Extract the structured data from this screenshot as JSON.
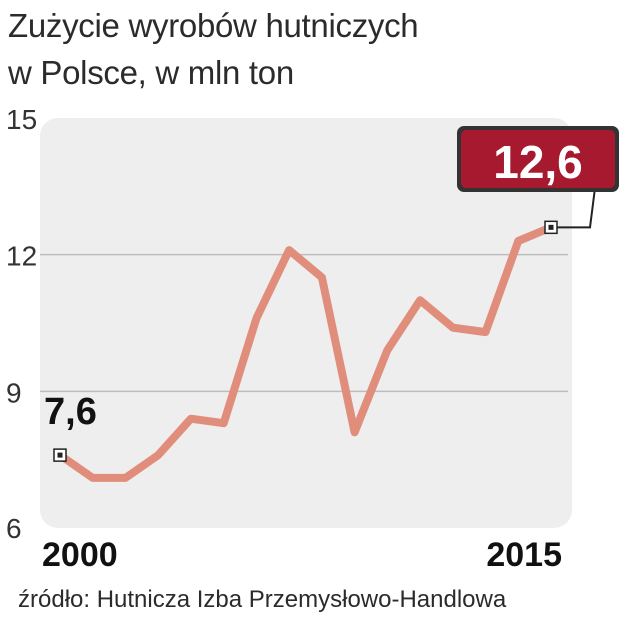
{
  "title_lines": [
    "Zużycie wyrobów hutniczych",
    "w Polsce, w mln ton"
  ],
  "source": "źródło: Hutnicza Izba Przemysłowo-Handlowa",
  "colors": {
    "line": "#e08e7b",
    "panel": "#eeeeee",
    "grid": "#bdbdbd",
    "highlight": "#a6192e"
  },
  "chart_data": {
    "type": "line",
    "title": "Zużycie wyrobów hutniczych w Polsce, w mln ton",
    "x": [
      2000,
      2001,
      2002,
      2003,
      2004,
      2005,
      2006,
      2007,
      2008,
      2009,
      2010,
      2011,
      2012,
      2013,
      2014,
      2015
    ],
    "series": [
      {
        "values": [
          7.6,
          7.1,
          7.1,
          7.6,
          8.4,
          8.3,
          10.6,
          12.1,
          11.5,
          8.1,
          9.9,
          11.0,
          10.4,
          10.3,
          12.3,
          12.6
        ]
      }
    ],
    "yticks": [
      6,
      9,
      12,
      15
    ],
    "ytick_labels": [
      "6",
      "9",
      "12",
      "15"
    ],
    "ylim": [
      6,
      15
    ],
    "xtick_labels": [
      {
        "x": 2000,
        "label": "2000"
      },
      {
        "x": 2015,
        "label": "2015"
      }
    ],
    "annotations": [
      {
        "x": 2000,
        "label": "7,6"
      },
      {
        "x": 2015,
        "label": "12,6"
      }
    ],
    "grid": true
  }
}
